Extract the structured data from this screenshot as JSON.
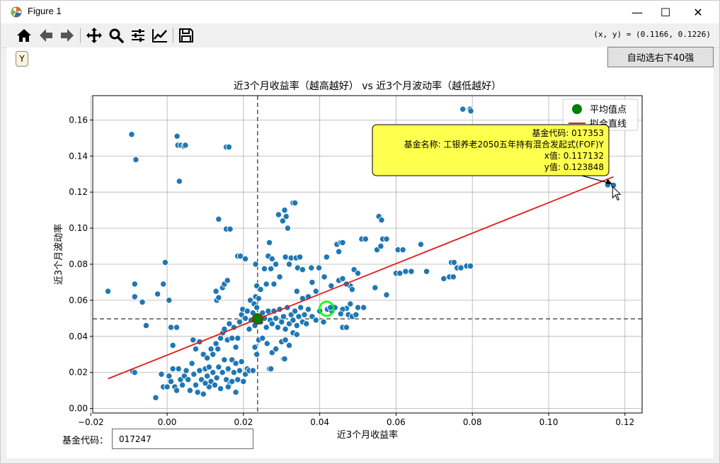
{
  "window": {
    "title": "Figure 1",
    "minimize": "—",
    "maximize": "☐",
    "close": "✕"
  },
  "toolbar": {
    "buttons": [
      "home-icon",
      "back-icon",
      "forward-icon",
      "pan-icon",
      "zoom-icon",
      "configure-subplots-icon",
      "edit-axis-icon",
      "save-icon"
    ],
    "coord_readout": "(x, y) = (0.1166, 0.1226)"
  },
  "controls": {
    "y_button": "Y",
    "auto_select": "自动选右下40强",
    "fund_code_label": "基金代码：",
    "fund_code_value": "017247"
  },
  "colors": {
    "points": "#1f77b4",
    "fit_line": "#e31a1c",
    "mean_point": "#008000",
    "highlight_ring": "#00ff00",
    "tooltip_bg": "#ffff4d"
  },
  "chart_data": {
    "type": "scatter",
    "title": "近3个月收益率（越高越好） vs 近3个月波动率（越低越好）",
    "xlabel": "近3个月收益率",
    "ylabel": "近3个月波动率",
    "xlim": [
      -0.0195,
      0.1245
    ],
    "ylim": [
      -0.0025,
      0.1735
    ],
    "xticks": [
      -0.02,
      0.0,
      0.02,
      0.04,
      0.06,
      0.08,
      0.1,
      0.12
    ],
    "xtick_labels": [
      "−0.02",
      "0.00",
      "0.02",
      "0.04",
      "0.06",
      "0.08",
      "0.10",
      "0.12"
    ],
    "yticks": [
      0.0,
      0.02,
      0.04,
      0.06,
      0.08,
      0.1,
      0.12,
      0.14,
      0.16
    ],
    "ytick_labels": [
      "0.00",
      "0.02",
      "0.04",
      "0.06",
      "0.08",
      "0.10",
      "0.12",
      "0.14",
      "0.16"
    ],
    "grid": true,
    "legend_position": "top-right",
    "legend": [
      {
        "label": "平均值点",
        "kind": "marker"
      },
      {
        "label": "拟合直线",
        "kind": "line"
      }
    ],
    "mean_point": {
      "x": 0.0237,
      "y": 0.0497
    },
    "fit_line": {
      "x": [
        -0.0155,
        0.117
      ],
      "y": [
        0.0165,
        0.1285
      ]
    },
    "highlight_point": {
      "x": 0.0418,
      "y": 0.0553
    },
    "annotation": {
      "lines": [
        "基金代码: 017353",
        "基金名称: 工银养老2050五年持有混合发起式(FOF)Y",
        "x值: 0.117132",
        "y值: 0.123848"
      ],
      "target": {
        "x": 0.117132,
        "y": 0.123848
      }
    },
    "points": [
      [
        0.0775,
        0.166
      ],
      [
        0.0794,
        0.166
      ],
      [
        0.0796,
        0.165
      ],
      [
        0.1155,
        0.124
      ],
      [
        0.117,
        0.1238
      ],
      [
        -0.0093,
        0.152
      ],
      [
        -0.0082,
        0.138
      ],
      [
        0.0026,
        0.151
      ],
      [
        0.0028,
        0.146
      ],
      [
        0.0036,
        0.146
      ],
      [
        0.0044,
        0.1455
      ],
      [
        0.0048,
        0.146
      ],
      [
        0.0032,
        0.126
      ],
      [
        0.0155,
        0.145
      ],
      [
        0.0162,
        0.145
      ],
      [
        0.0135,
        0.105
      ],
      [
        0.0155,
        0.0995
      ],
      [
        0.0165,
        0.0995
      ],
      [
        0.033,
        0.114
      ],
      [
        0.0335,
        0.114
      ],
      [
        0.0292,
        0.1075
      ],
      [
        0.0308,
        0.11
      ],
      [
        0.0312,
        0.1065
      ],
      [
        0.0316,
        0.1
      ],
      [
        0.0303,
        0.104
      ],
      [
        0.0185,
        0.0845
      ],
      [
        0.0192,
        0.0845
      ],
      [
        0.0205,
        0.083
      ],
      [
        0.0268,
        0.092
      ],
      [
        0.0255,
        0.0775
      ],
      [
        0.0272,
        0.0775
      ],
      [
        0.0265,
        0.0845
      ],
      [
        0.0232,
        0.08
      ],
      [
        0.0275,
        0.083
      ],
      [
        0.0285,
        0.08
      ],
      [
        0.031,
        0.084
      ],
      [
        0.0325,
        0.0835
      ],
      [
        0.0338,
        0.0835
      ],
      [
        0.0348,
        0.084
      ],
      [
        0.032,
        0.08
      ],
      [
        0.0342,
        0.078
      ],
      [
        0.0355,
        0.077
      ],
      [
        0.0378,
        0.078
      ],
      [
        0.0398,
        0.078
      ],
      [
        0.0418,
        0.084
      ],
      [
        0.0145,
        0.067
      ],
      [
        0.015,
        0.069
      ],
      [
        0.0158,
        0.071
      ],
      [
        0.013,
        0.06
      ],
      [
        0.0135,
        0.0615
      ],
      [
        0.0128,
        0.065
      ],
      [
        0.0218,
        0.06
      ],
      [
        0.0228,
        0.058
      ],
      [
        0.0232,
        0.062
      ],
      [
        0.024,
        0.061
      ],
      [
        0.0235,
        0.068
      ],
      [
        0.0245,
        0.066
      ],
      [
        0.026,
        0.069
      ],
      [
        0.028,
        0.069
      ],
      [
        0.0295,
        0.073
      ],
      [
        0.034,
        0.065
      ],
      [
        0.0355,
        0.061
      ],
      [
        0.037,
        0.062
      ],
      [
        0.039,
        0.065
      ],
      [
        0.038,
        0.07
      ],
      [
        0.0412,
        0.073
      ],
      [
        0.043,
        0.068
      ],
      [
        0.0445,
        0.091
      ],
      [
        0.0455,
        0.092
      ],
      [
        0.046,
        0.092
      ],
      [
        0.045,
        0.087
      ],
      [
        0.051,
        0.094
      ],
      [
        0.052,
        0.094
      ],
      [
        0.055,
        0.088
      ],
      [
        0.0555,
        0.1065
      ],
      [
        0.0562,
        0.1045
      ],
      [
        0.0565,
        0.094
      ],
      [
        0.0575,
        0.094
      ],
      [
        0.056,
        0.09
      ],
      [
        0.0605,
        0.088
      ],
      [
        0.0618,
        0.088
      ],
      [
        0.0665,
        0.091
      ],
      [
        0.06,
        0.075
      ],
      [
        0.061,
        0.075
      ],
      [
        0.0625,
        0.076
      ],
      [
        0.064,
        0.076
      ],
      [
        0.068,
        0.076
      ],
      [
        0.0725,
        0.072
      ],
      [
        0.074,
        0.073
      ],
      [
        0.075,
        0.073
      ],
      [
        0.0745,
        0.081
      ],
      [
        0.0752,
        0.081
      ],
      [
        0.076,
        0.078
      ],
      [
        0.077,
        0.078
      ],
      [
        0.0785,
        0.079
      ],
      [
        0.0795,
        0.079
      ],
      [
        0.045,
        0.071
      ],
      [
        0.046,
        0.072
      ],
      [
        0.048,
        0.068
      ],
      [
        0.049,
        0.077
      ],
      [
        0.05,
        0.075
      ],
      [
        0.047,
        0.069
      ],
      [
        0.0485,
        0.066
      ],
      [
        0.0545,
        0.067
      ],
      [
        0.0575,
        0.063
      ],
      [
        0.05,
        0.056
      ],
      [
        0.0515,
        0.056
      ],
      [
        0.048,
        0.058
      ],
      [
        0.047,
        0.0555
      ],
      [
        0.046,
        0.055
      ],
      [
        0.0475,
        0.052
      ],
      [
        0.0455,
        0.0525
      ],
      [
        0.046,
        0.045
      ],
      [
        0.047,
        0.045
      ],
      [
        0.0485,
        0.051
      ],
      [
        0.0495,
        0.052
      ],
      [
        0.042,
        0.055
      ],
      [
        0.0432,
        0.054
      ],
      [
        0.044,
        0.056
      ],
      [
        0.0428,
        0.056
      ],
      [
        -0.0155,
        0.065
      ],
      [
        -0.0085,
        0.069
      ],
      [
        -0.0085,
        0.062
      ],
      [
        -0.0065,
        0.059
      ],
      [
        -0.0055,
        0.046
      ],
      [
        -0.0025,
        0.0635
      ],
      [
        -0.0005,
        0.081
      ],
      [
        -0.001,
        0.069
      ],
      [
        0.0005,
        0.06
      ],
      [
        0.001,
        0.045
      ],
      [
        0.0025,
        0.045
      ],
      [
        0.0015,
        0.035
      ],
      [
        -0.009,
        0.0205
      ],
      [
        -0.0085,
        0.02
      ],
      [
        -0.003,
        0.006
      ],
      [
        -0.0015,
        0.019
      ],
      [
        -0.001,
        0.012
      ],
      [
        0.0,
        0.012
      ],
      [
        0.0005,
        0.018
      ],
      [
        0.001,
        0.015
      ],
      [
        0.0015,
        0.022
      ],
      [
        0.002,
        0.012
      ],
      [
        0.0025,
        0.01
      ],
      [
        0.003,
        0.022
      ],
      [
        0.0035,
        0.016
      ],
      [
        0.004,
        0.013
      ],
      [
        0.0045,
        0.018
      ],
      [
        0.005,
        0.021
      ],
      [
        0.0055,
        0.016
      ],
      [
        0.006,
        0.01
      ],
      [
        0.0065,
        0.025
      ],
      [
        0.007,
        0.019
      ],
      [
        0.0075,
        0.013
      ],
      [
        0.008,
        0.009
      ],
      [
        0.0085,
        0.021
      ],
      [
        0.009,
        0.016
      ],
      [
        0.0095,
        0.008
      ],
      [
        0.01,
        0.022
      ],
      [
        0.0105,
        0.018
      ],
      [
        0.011,
        0.023
      ],
      [
        0.0115,
        0.015
      ],
      [
        0.012,
        0.02
      ],
      [
        0.0125,
        0.013
      ],
      [
        0.013,
        0.017
      ],
      [
        0.0135,
        0.023
      ],
      [
        0.014,
        0.011
      ],
      [
        0.0145,
        0.02
      ],
      [
        0.015,
        0.027
      ],
      [
        0.0155,
        0.016
      ],
      [
        0.016,
        0.022
      ],
      [
        0.0165,
        0.014
      ],
      [
        0.017,
        0.027
      ],
      [
        0.0175,
        0.02
      ],
      [
        0.018,
        0.025
      ],
      [
        0.0185,
        0.016
      ],
      [
        0.019,
        0.021
      ],
      [
        0.0195,
        0.026
      ],
      [
        0.02,
        0.015
      ],
      [
        0.0205,
        0.019
      ],
      [
        0.021,
        0.022
      ],
      [
        0.0068,
        0.038
      ],
      [
        0.0075,
        0.033
      ],
      [
        0.0085,
        0.037
      ],
      [
        0.0095,
        0.03
      ],
      [
        0.0105,
        0.028
      ],
      [
        0.0115,
        0.033
      ],
      [
        0.012,
        0.03
      ],
      [
        0.0128,
        0.036
      ],
      [
        0.0133,
        0.033
      ],
      [
        0.014,
        0.039
      ],
      [
        0.0146,
        0.042
      ],
      [
        0.015,
        0.044
      ],
      [
        0.0158,
        0.038
      ],
      [
        0.0163,
        0.047
      ],
      [
        0.017,
        0.039
      ],
      [
        0.0175,
        0.045
      ],
      [
        0.018,
        0.034
      ],
      [
        0.0185,
        0.039
      ],
      [
        0.019,
        0.048
      ],
      [
        0.0195,
        0.052
      ],
      [
        0.0198,
        0.055
      ],
      [
        0.0205,
        0.05
      ],
      [
        0.021,
        0.054
      ],
      [
        0.0215,
        0.044
      ],
      [
        0.022,
        0.049
      ],
      [
        0.0225,
        0.053
      ],
      [
        0.023,
        0.046
      ],
      [
        0.0235,
        0.056
      ],
      [
        0.024,
        0.051
      ],
      [
        0.0245,
        0.048
      ],
      [
        0.025,
        0.053
      ],
      [
        0.0255,
        0.05
      ],
      [
        0.026,
        0.045
      ],
      [
        0.0265,
        0.054
      ],
      [
        0.027,
        0.049
      ],
      [
        0.0275,
        0.047
      ],
      [
        0.028,
        0.054
      ],
      [
        0.0285,
        0.05
      ],
      [
        0.029,
        0.045
      ],
      [
        0.0295,
        0.055
      ],
      [
        0.03,
        0.048
      ],
      [
        0.0305,
        0.051
      ],
      [
        0.031,
        0.044
      ],
      [
        0.0315,
        0.056
      ],
      [
        0.032,
        0.047
      ],
      [
        0.0325,
        0.052
      ],
      [
        0.033,
        0.049
      ],
      [
        0.0335,
        0.054
      ],
      [
        0.034,
        0.046
      ],
      [
        0.0345,
        0.051
      ],
      [
        0.035,
        0.056
      ],
      [
        0.0355,
        0.048
      ],
      [
        0.036,
        0.052
      ],
      [
        0.0365,
        0.047
      ],
      [
        0.037,
        0.055
      ],
      [
        0.038,
        0.051
      ],
      [
        0.039,
        0.049
      ],
      [
        0.04,
        0.054
      ],
      [
        0.041,
        0.048
      ],
      [
        0.024,
        0.038
      ],
      [
        0.025,
        0.039
      ],
      [
        0.0262,
        0.036
      ],
      [
        0.0275,
        0.031
      ],
      [
        0.0285,
        0.033
      ],
      [
        0.03,
        0.037
      ],
      [
        0.031,
        0.038
      ],
      [
        0.032,
        0.035
      ],
      [
        0.033,
        0.042
      ],
      [
        0.034,
        0.041
      ],
      [
        0.023,
        0.034
      ],
      [
        0.0235,
        0.03
      ],
      [
        0.0268,
        0.022
      ],
      [
        0.0272,
        0.022
      ],
      [
        0.0305,
        0.0275
      ],
      [
        0.0308,
        0.0275
      ],
      [
        0.0215,
        0.021
      ],
      [
        0.0225,
        0.021
      ],
      [
        0.016,
        0.012
      ],
      [
        0.017,
        0.015
      ],
      [
        0.011,
        0.012
      ],
      [
        0.01,
        0.014
      ],
      [
        0.018,
        0.009
      ]
    ]
  }
}
